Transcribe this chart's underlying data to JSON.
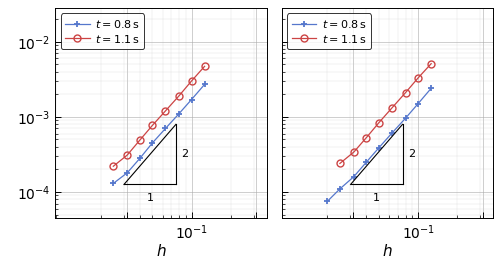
{
  "h_values": [
    0.025,
    0.032,
    0.04,
    0.05,
    0.063,
    0.08,
    0.1,
    0.126,
    0.158,
    0.2,
    0.251,
    0.316
  ],
  "blue_left": [
    0.00013,
    0.00018,
    0.00028,
    0.00045,
    0.0007,
    0.0011,
    0.0017,
    0.0027,
    null,
    null,
    null,
    null
  ],
  "red_left": [
    0.00022,
    0.00031,
    0.00049,
    0.00077,
    0.0012,
    0.0019,
    0.003,
    0.0047,
    null,
    null,
    null,
    null
  ],
  "h_values_right": [
    0.02,
    0.025,
    0.032,
    0.04,
    0.05,
    0.063,
    0.08,
    0.1,
    0.126,
    0.158,
    0.2,
    0.251,
    0.316
  ],
  "blue_right": [
    7.5e-05,
    0.00011,
    0.00016,
    0.00025,
    0.00039,
    0.00061,
    0.00096,
    0.0015,
    0.0024,
    null,
    null,
    null,
    null
  ],
  "red_right": [
    null,
    0.00024,
    0.00034,
    0.00053,
    0.00084,
    0.00132,
    0.0021,
    0.0033,
    0.0051,
    null,
    null,
    null,
    null
  ],
  "blue_color": "#5577cc",
  "red_color": "#cc4444",
  "xlabel": "$h$",
  "legend_t08": "$t = 0.8\\,\\mathrm{s}$",
  "legend_t11": "$t = 1.1\\,\\mathrm{s}$",
  "xticks_exp": [
    -1.5,
    -1.0,
    -0.5
  ],
  "yticks_exp": [
    -4,
    -3,
    -2
  ],
  "xlim_log": [
    -2.05,
    -0.42
  ],
  "ylim_log": [
    -4.35,
    -1.55
  ]
}
